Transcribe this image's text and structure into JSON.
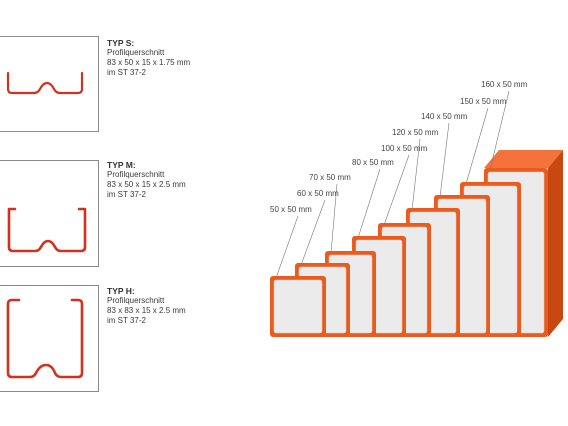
{
  "profiles": [
    {
      "type": "TYP S:",
      "name": "Profilquerschnitt",
      "dims": "83 x 50 x 15 x 1.75 mm",
      "material": "im ST 37-2"
    },
    {
      "type": "TYP M:",
      "name": "Profilquerschnitt",
      "dims": "83 x 50 x 15 x 2.5 mm",
      "material": "im ST 37-2"
    },
    {
      "type": "TYP H:",
      "name": "Profilquerschnitt",
      "dims": "83 x 83 x 15 x 2.5 mm",
      "material": "im ST 37-2"
    }
  ],
  "sizes": [
    "50 x 50 mm",
    "60 x 50 mm",
    "70 x 50 mm",
    "80 x 50 mm",
    "100 x 50 mm",
    "120 x 50 mm",
    "140 x 50 mm",
    "150 x 50 mm",
    "160 x 50 mm"
  ],
  "colors": {
    "profile": "#d2311e",
    "tube_front": "#ec5a1c",
    "tube_top": "#f3733a",
    "tube_side": "#c94711",
    "tube_inner": "#ebebeb"
  }
}
